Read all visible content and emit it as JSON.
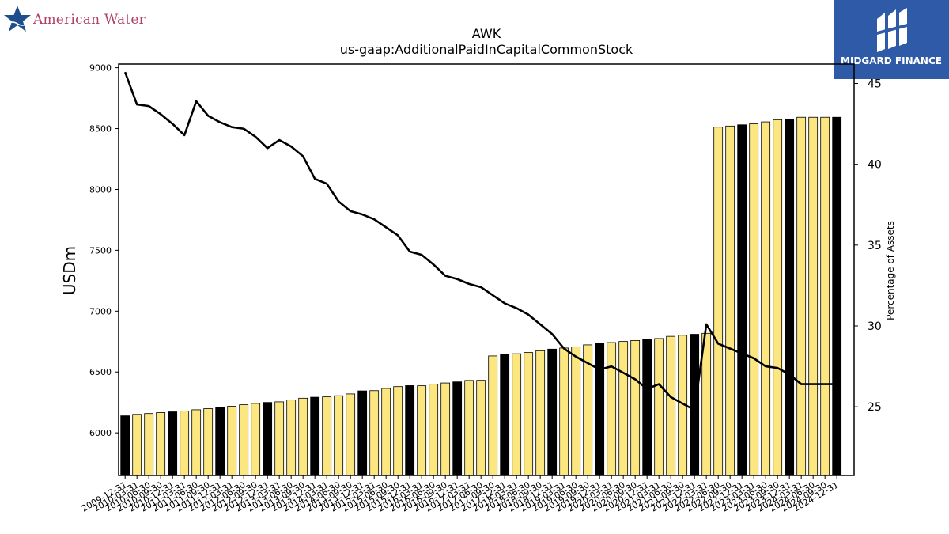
{
  "logos": {
    "left_text": "American Water",
    "right_text": "MIDGARD FINANCE"
  },
  "chart_data": {
    "type": "bar",
    "title": "AWK",
    "subtitle": "us-gaap:AdditionalPaidInCapitalCommonStock",
    "ylabel": "USDm",
    "y2label": "Percentage of Assets",
    "ylim": [
      5650,
      9030
    ],
    "y2lim": [
      20.75,
      46.2
    ],
    "yticks": [
      6000,
      6500,
      7000,
      7500,
      8000,
      8500,
      9000
    ],
    "y2ticks": [
      25,
      30,
      35,
      40,
      45
    ],
    "bar_colors": {
      "quarter": "#fce680",
      "year_end": "#000000"
    },
    "categories": [
      "2009-12-31",
      "2010-03-31",
      "2010-06-30",
      "2010-09-30",
      "2010-12-31",
      "2011-03-31",
      "2011-06-30",
      "2011-09-30",
      "2011-12-31",
      "2012-03-31",
      "2012-06-30",
      "2012-09-30",
      "2012-12-31",
      "2013-03-31",
      "2013-06-30",
      "2013-09-30",
      "2013-12-31",
      "2014-03-31",
      "2014-06-30",
      "2014-09-30",
      "2014-12-31",
      "2015-03-31",
      "2015-06-30",
      "2015-09-30",
      "2015-12-31",
      "2016-03-31",
      "2016-06-30",
      "2016-09-30",
      "2016-12-31",
      "2017-03-31",
      "2017-06-30",
      "2017-09-30",
      "2017-12-31",
      "2018-03-31",
      "2018-06-30",
      "2018-09-30",
      "2018-12-31",
      "2019-03-31",
      "2019-06-30",
      "2019-09-30",
      "2019-12-31",
      "2020-03-31",
      "2020-06-30",
      "2020-09-30",
      "2020-12-31",
      "2021-03-31",
      "2021-06-30",
      "2021-09-30",
      "2021-12-31",
      "2022-03-31",
      "2022-06-30",
      "2022-09-30",
      "2022-12-31",
      "2023-03-31",
      "2023-06-30",
      "2023-09-30",
      "2023-12-31",
      "2024-03-31",
      "2024-06-30",
      "2024-09-30",
      "2024-12-31"
    ],
    "tick_labels": [
      "2009-12-31",
      "2010-03-31",
      "2010-06-30",
      "2010-09-30",
      "2010-12-31",
      "2011-03-31",
      "2011-06-30",
      "2011-09-30",
      "2011-12-31",
      "2012-03-31",
      "2012-06-30",
      "2012-09-30",
      "2012-12-31",
      "2013-03-31",
      "2013-06-30",
      "2013-09-30",
      "2013-12-31",
      "2014-03-31",
      "2014-06-30",
      "2014-09-30",
      "2014-12-31",
      "2015-03-31",
      "2015-06-30",
      "2015-09-30",
      "2015-12-31",
      "2016-03-31",
      "2016-06-30",
      "2016-09-30",
      "2016-12-31",
      "2017-03-31",
      "2017-06-30",
      "2017-09-30",
      "2017-12-31",
      "2018-03-31",
      "2018-06-30",
      "2018-09-30",
      "2018-12-31",
      "2019-03-31",
      "2019-06-30",
      "2019-09-30",
      "2019-12-31",
      "2020-03-31",
      "2020-06-30",
      "2020-09-30",
      "2020-12-31",
      "2021-03-31",
      "2021-06-30",
      "2021-09-30",
      "2021-12-31",
      "2022-03-31",
      "2022-06-30",
      "2022-09-30",
      "2022-12-31",
      "2023-03-31",
      "2023-06-30",
      "2023-09-30",
      "2023-12-31",
      "2024-03-31",
      "2024-06-30",
      "2024-09-30",
      "2024-12-31"
    ],
    "series": [
      {
        "values": [
          6140,
          6152,
          6159,
          6167,
          6173,
          6179,
          6190,
          6199,
          6209,
          6219,
          6231,
          6242,
          6250,
          6255,
          6270,
          6285,
          6293,
          6296,
          6305,
          6320,
          6345,
          6347,
          6365,
          6380,
          6388,
          6387,
          6400,
          6410,
          6419,
          6431,
          6432,
          6632,
          6647,
          6650,
          6660,
          6675,
          6688,
          6697,
          6707,
          6723,
          6735,
          6742,
          6751,
          6759,
          6767,
          6775,
          6793,
          6802,
          6810,
          6818,
          8512,
          8521,
          8531,
          8539,
          8555,
          8573,
          8579,
          8593,
          8593,
          8593,
          8593
        ]
      },
      {
        "axis": "right",
        "values": [
          45.7,
          43.7,
          43.6,
          43.1,
          42.5,
          41.8,
          43.9,
          43.0,
          42.6,
          42.3,
          42.2,
          41.7,
          41.0,
          41.5,
          41.1,
          40.5,
          39.1,
          38.8,
          37.7,
          37.1,
          36.9,
          36.6,
          36.1,
          35.6,
          34.6,
          34.4,
          33.8,
          33.1,
          32.9,
          32.6,
          32.4,
          31.9,
          31.4,
          31.1,
          30.7,
          30.1,
          29.5,
          28.6,
          28.1,
          27.7,
          27.3,
          27.5,
          27.1,
          26.7,
          26.1,
          26.4,
          25.6,
          25.2,
          24.8,
          30.1,
          28.9,
          28.6,
          28.3,
          28.0,
          27.5,
          27.4,
          27.0,
          26.4,
          26.4,
          26.4,
          26.4
        ]
      }
    ]
  }
}
